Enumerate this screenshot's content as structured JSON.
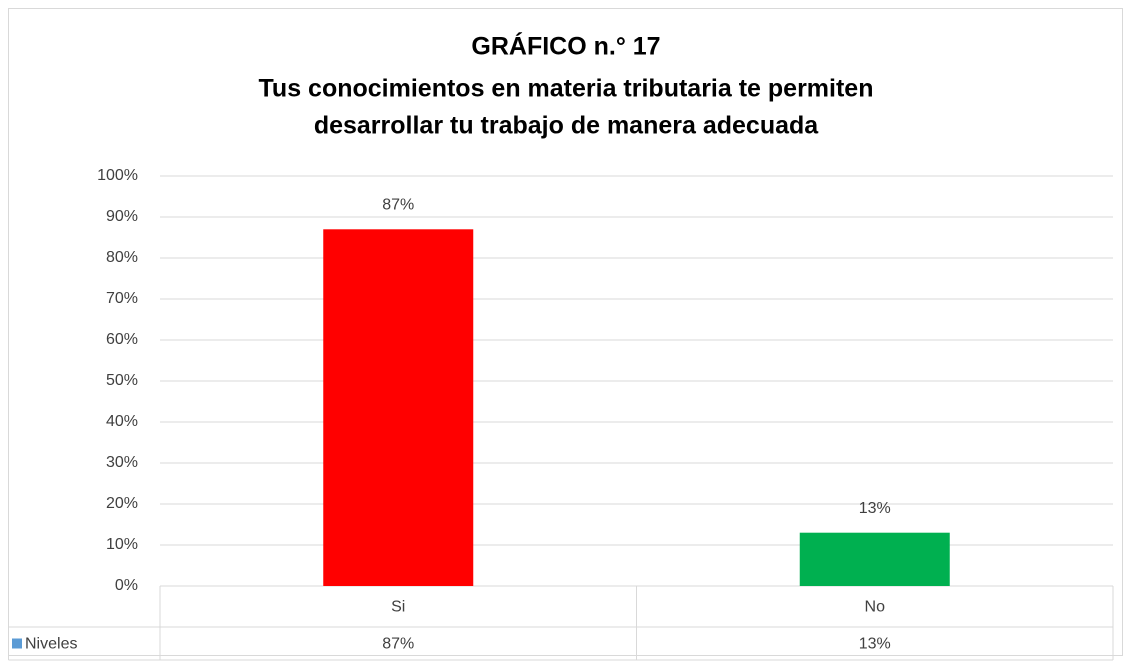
{
  "chart_data": {
    "type": "bar",
    "title": "GRÁFICO n.° 17",
    "subtitle": [
      "Tus conocimientos en materia tributaria te permiten",
      "desarrollar tu trabajo de manera adecuada"
    ],
    "categories": [
      "Si",
      "No"
    ],
    "series": [
      {
        "name": "Niveles",
        "color": "#5b9bd5",
        "colors": [
          "#ff0000",
          "#00b050"
        ],
        "values": [
          87,
          13
        ],
        "value_labels": [
          "87%",
          "13%"
        ]
      }
    ],
    "ylim": [
      0,
      100
    ],
    "yticks": [
      {
        "value": 0,
        "label": "0%"
      },
      {
        "value": 10,
        "label": "10%"
      },
      {
        "value": 20,
        "label": "20%"
      },
      {
        "value": 30,
        "label": "30%"
      },
      {
        "value": 40,
        "label": "40%"
      },
      {
        "value": 50,
        "label": "50%"
      },
      {
        "value": 60,
        "label": "60%"
      },
      {
        "value": 70,
        "label": "70%"
      },
      {
        "value": 80,
        "label": "80%"
      },
      {
        "value": 90,
        "label": "90%"
      },
      {
        "value": 100,
        "label": "100%"
      }
    ],
    "grid": true,
    "data_table": true
  }
}
